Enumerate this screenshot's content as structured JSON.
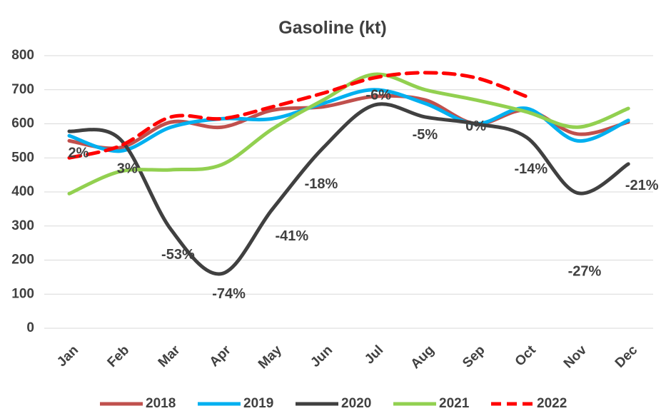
{
  "chart_data": {
    "type": "line",
    "title": "Gasoline (kt)",
    "categories": [
      "Jan",
      "Feb",
      "Mar",
      "Apr",
      "May",
      "Jun",
      "Jul",
      "Aug",
      "Sep",
      "Oct",
      "Nov",
      "Dec"
    ],
    "series": [
      {
        "name": "2018",
        "color": "#c0504d",
        "values": [
          550,
          530,
          605,
          590,
          640,
          650,
          680,
          670,
          600,
          640,
          570,
          605
        ]
      },
      {
        "name": "2019",
        "color": "#00b0f0",
        "values": [
          565,
          520,
          590,
          615,
          615,
          660,
          700,
          660,
          600,
          645,
          550,
          610
        ]
      },
      {
        "name": "2020",
        "color": "#404040",
        "values": [
          578,
          555,
          290,
          160,
          350,
          530,
          655,
          620,
          600,
          560,
          397,
          482
        ]
      },
      {
        "name": "2021",
        "color": "#92d050",
        "values": [
          395,
          460,
          465,
          480,
          585,
          670,
          745,
          700,
          670,
          635,
          590,
          645
        ]
      },
      {
        "name": "2022",
        "color": "#ff0000",
        "dashed": true,
        "values": [
          500,
          535,
          620,
          615,
          650,
          690,
          735,
          750,
          735,
          680,
          null,
          null
        ]
      }
    ],
    "annotations": [
      "2%",
      "3%",
      "-53%",
      "-74%",
      "-41%",
      "-18%",
      "-6%",
      "-5%",
      "0%",
      "-14%",
      "-27%",
      "-21%"
    ],
    "ylim": [
      0,
      800
    ],
    "yticks": [
      0,
      100,
      200,
      300,
      400,
      500,
      600,
      700,
      800
    ],
    "grid": true,
    "legend": "bottom"
  }
}
